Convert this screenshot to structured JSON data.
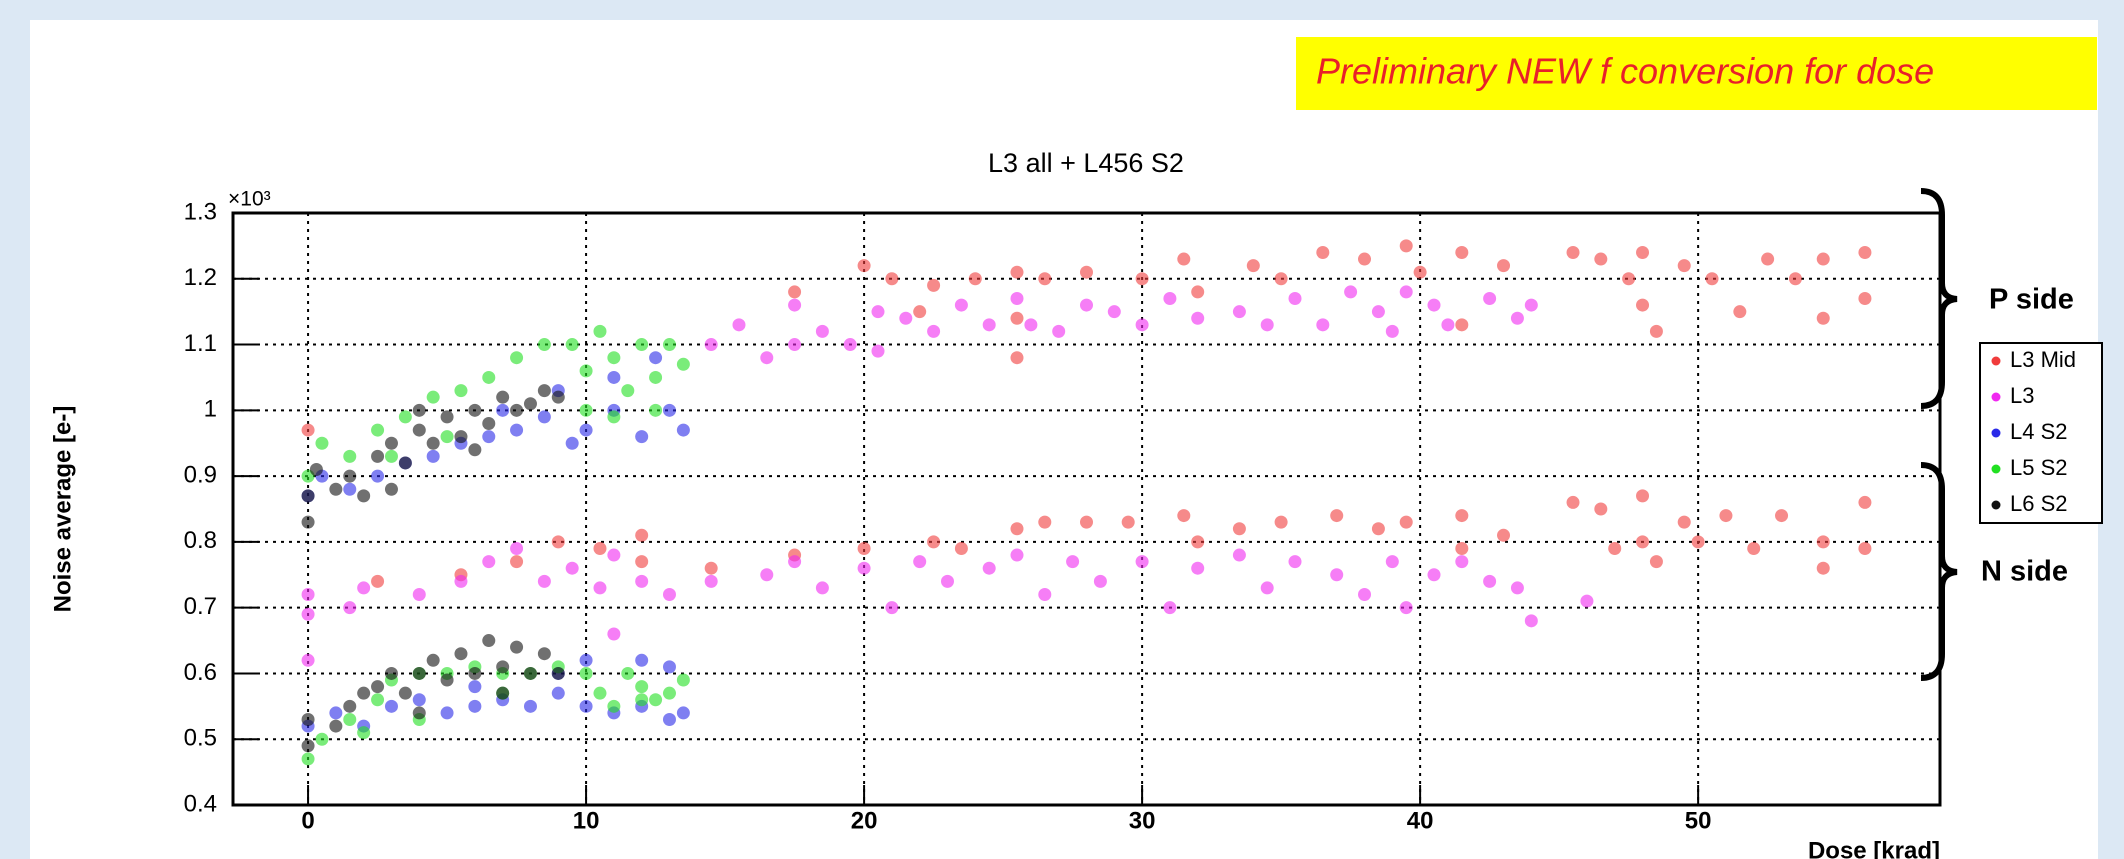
{
  "chart_data": {
    "type": "scatter",
    "banner": "Preliminary  NEW f conversion for dose",
    "title": "L3 all + L456 S2",
    "xlabel": "Dose [krad]",
    "ylabel": "Noise average [e-]",
    "y_multiplier": "×10³",
    "annotations": [
      "P side",
      "N side"
    ],
    "xlim": [
      -2.7,
      58.7
    ],
    "ylim": [
      0.4,
      1.3
    ],
    "xticks": [
      0,
      10,
      20,
      30,
      40,
      50
    ],
    "yticks": [
      0.4,
      0.5,
      0.6,
      0.7,
      0.8,
      0.9,
      1,
      1.1,
      1.2,
      1.3
    ],
    "grid": true,
    "legend": "right",
    "series": [
      {
        "name": "L3 Mid",
        "color": "#f03c3c",
        "x": [
          17.5,
          20,
          21,
          22.5,
          24,
          25.5,
          25.5,
          26.5,
          28,
          30,
          31.5,
          32,
          34,
          35,
          36.5,
          38,
          39.5,
          40,
          41.5,
          41.5,
          43,
          45.5,
          46.5,
          47.5,
          48,
          48,
          48.5,
          49.5,
          50.5,
          51.5,
          52.5,
          53.5,
          54.5,
          54.5,
          56,
          56,
          25.5,
          22,
          2.5,
          5.5,
          7.5,
          9,
          10.5,
          12,
          12,
          14.5,
          17.5,
          20,
          22.5,
          23.5,
          25.5,
          26.5,
          28,
          29.5,
          31.5,
          32,
          33.5,
          35,
          37,
          38.5,
          39.5,
          41.5,
          41.5,
          43,
          45.5,
          46.5,
          47,
          48,
          48,
          48.5,
          49.5,
          50,
          51,
          52,
          53,
          54.5,
          54.5,
          56,
          56,
          0
        ],
        "values": [
          1.18,
          1.22,
          1.2,
          1.19,
          1.2,
          1.21,
          1.14,
          1.2,
          1.21,
          1.2,
          1.23,
          1.18,
          1.22,
          1.2,
          1.24,
          1.23,
          1.25,
          1.21,
          1.24,
          1.13,
          1.22,
          1.24,
          1.23,
          1.2,
          1.24,
          1.16,
          1.12,
          1.22,
          1.2,
          1.15,
          1.23,
          1.2,
          1.23,
          1.14,
          1.24,
          1.17,
          1.08,
          1.15,
          0.74,
          0.75,
          0.77,
          0.8,
          0.79,
          0.81,
          0.77,
          0.76,
          0.78,
          0.79,
          0.8,
          0.79,
          0.82,
          0.83,
          0.83,
          0.83,
          0.84,
          0.8,
          0.82,
          0.83,
          0.84,
          0.82,
          0.83,
          0.84,
          0.79,
          0.81,
          0.86,
          0.85,
          0.79,
          0.87,
          0.8,
          0.77,
          0.83,
          0.8,
          0.84,
          0.79,
          0.84,
          0.8,
          0.76,
          0.86,
          0.79,
          0.97
        ]
      },
      {
        "name": "L3",
        "color": "#f028f0",
        "x": [
          14.5,
          15.5,
          16.5,
          17.5,
          17.5,
          18.5,
          19.5,
          20.5,
          20.5,
          21.5,
          22.5,
          23.5,
          24.5,
          25.5,
          26,
          27,
          28,
          29,
          30,
          31,
          32,
          33.5,
          34.5,
          35.5,
          36.5,
          37.5,
          38.5,
          39,
          39.5,
          40.5,
          41,
          42.5,
          43.5,
          44,
          0,
          0,
          0,
          1.5,
          2,
          4,
          5.5,
          6.5,
          7.5,
          8.5,
          9.5,
          10.5,
          11,
          12,
          13,
          14.5,
          16.5,
          17.5,
          18.5,
          20,
          21,
          22,
          23,
          24.5,
          25.5,
          26.5,
          27.5,
          28.5,
          30,
          31,
          32,
          33.5,
          34.5,
          35.5,
          37,
          38,
          39,
          39.5,
          40.5,
          41.5,
          42.5,
          43.5,
          44,
          46,
          11
        ],
        "values": [
          1.1,
          1.13,
          1.08,
          1.1,
          1.16,
          1.12,
          1.1,
          1.09,
          1.15,
          1.14,
          1.12,
          1.16,
          1.13,
          1.17,
          1.13,
          1.12,
          1.16,
          1.15,
          1.13,
          1.17,
          1.14,
          1.15,
          1.13,
          1.17,
          1.13,
          1.18,
          1.15,
          1.12,
          1.18,
          1.16,
          1.13,
          1.17,
          1.14,
          1.16,
          0.69,
          0.72,
          0.62,
          0.7,
          0.73,
          0.72,
          0.74,
          0.77,
          0.79,
          0.74,
          0.76,
          0.73,
          0.78,
          0.74,
          0.72,
          0.74,
          0.75,
          0.77,
          0.73,
          0.76,
          0.7,
          0.77,
          0.74,
          0.76,
          0.78,
          0.72,
          0.77,
          0.74,
          0.77,
          0.7,
          0.76,
          0.78,
          0.73,
          0.77,
          0.75,
          0.72,
          0.77,
          0.7,
          0.75,
          0.77,
          0.74,
          0.73,
          0.68,
          0.71,
          0.66
        ]
      },
      {
        "name": "L4 S2",
        "color": "#2a2ae8",
        "x": [
          0,
          0.5,
          1.5,
          2.5,
          3.5,
          4.5,
          5.5,
          6.5,
          7.5,
          8.5,
          9.5,
          10,
          11,
          12,
          13,
          13.5,
          11,
          12.5,
          9,
          7,
          0,
          1,
          2,
          3,
          4,
          5,
          6,
          7,
          8,
          9,
          10,
          11,
          12,
          13,
          13.5,
          10,
          12,
          13,
          6,
          9
        ],
        "values": [
          0.87,
          0.9,
          0.88,
          0.9,
          0.92,
          0.93,
          0.95,
          0.96,
          0.97,
          0.99,
          0.95,
          0.97,
          1.0,
          0.96,
          1.0,
          0.97,
          1.05,
          1.08,
          1.03,
          1.0,
          0.52,
          0.54,
          0.52,
          0.55,
          0.56,
          0.54,
          0.55,
          0.56,
          0.55,
          0.57,
          0.55,
          0.54,
          0.55,
          0.53,
          0.54,
          0.62,
          0.62,
          0.61,
          0.58,
          0.6
        ]
      },
      {
        "name": "L5 S2",
        "color": "#22e022",
        "x": [
          0,
          0.5,
          1.5,
          2.5,
          3.5,
          4.5,
          5.5,
          6.5,
          7.5,
          8.5,
          9.5,
          10,
          10,
          10.5,
          11,
          11.5,
          12,
          12.5,
          13,
          13.5,
          12.5,
          11,
          3,
          5,
          0,
          0.5,
          1.5,
          2.5,
          3,
          4,
          5,
          6,
          7,
          8,
          9,
          10,
          10.5,
          11,
          12,
          12.5,
          13,
          13.5,
          11.5,
          12,
          4,
          2,
          7
        ],
        "values": [
          0.9,
          0.95,
          0.93,
          0.97,
          0.99,
          1.02,
          1.03,
          1.05,
          1.08,
          1.1,
          1.1,
          1.06,
          1.0,
          1.12,
          1.08,
          1.03,
          1.1,
          1.05,
          1.1,
          1.07,
          1.0,
          0.99,
          0.93,
          0.96,
          0.47,
          0.5,
          0.53,
          0.56,
          0.59,
          0.6,
          0.6,
          0.61,
          0.6,
          0.6,
          0.61,
          0.6,
          0.57,
          0.55,
          0.58,
          0.56,
          0.57,
          0.59,
          0.6,
          0.56,
          0.53,
          0.51,
          0.57
        ]
      },
      {
        "name": "L6 S2",
        "color": "#111111",
        "x": [
          0,
          0,
          0.3,
          1,
          1.5,
          2,
          2.5,
          3,
          3.5,
          4,
          4.5,
          5,
          5.5,
          6,
          6.5,
          7,
          7.5,
          8,
          8.5,
          9,
          4,
          6,
          3,
          0,
          0,
          1,
          1.5,
          2,
          2.5,
          3,
          3.5,
          4,
          4.5,
          5,
          5.5,
          6,
          6.5,
          7,
          7.5,
          8,
          8.5,
          9,
          4,
          7
        ],
        "values": [
          0.83,
          0.87,
          0.91,
          0.88,
          0.9,
          0.87,
          0.93,
          0.95,
          0.92,
          0.97,
          0.95,
          0.99,
          0.96,
          1.0,
          0.98,
          1.02,
          1.0,
          1.01,
          1.03,
          1.02,
          1.0,
          0.94,
          0.88,
          0.49,
          0.53,
          0.52,
          0.55,
          0.57,
          0.58,
          0.6,
          0.57,
          0.6,
          0.62,
          0.59,
          0.63,
          0.6,
          0.65,
          0.61,
          0.64,
          0.6,
          0.63,
          0.6,
          0.54,
          0.57
        ]
      }
    ]
  }
}
